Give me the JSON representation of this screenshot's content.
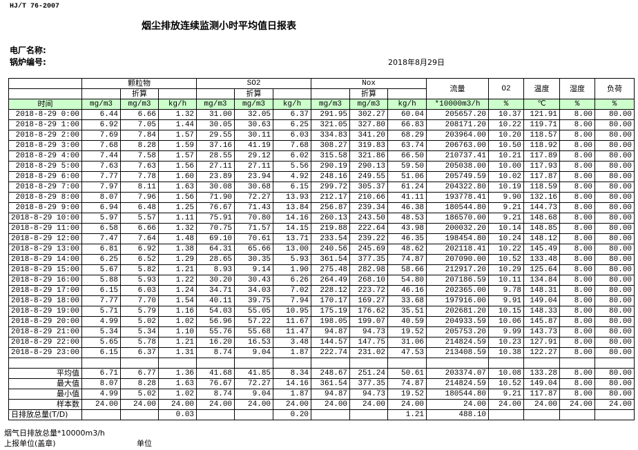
{
  "standard": "HJ/T  76-2007",
  "title": "烟尘排放连续监测小时平均值日报表",
  "plant_label": "电厂名称:",
  "boiler_label": "锅炉编号:",
  "date": "2018年8月29日",
  "header": {
    "groups": [
      "颗粒物",
      "SO2",
      "Nox"
    ],
    "converted": "折算",
    "flow": "流量",
    "o2": "O2",
    "temp": "温度",
    "humidity": "湿度",
    "load": "负荷",
    "time": "时间",
    "units": [
      "mg/m3",
      "mg/m3",
      "kg/h",
      "mg/m3",
      "mg/m3",
      "kg/h",
      "mg/m3",
      "mg/m3",
      "kg/h",
      "*10000m3/h",
      "%",
      "℃",
      "%",
      "%"
    ]
  },
  "rows": [
    [
      "2018-8-29 0:00",
      "6.44",
      "6.66",
      "1.32",
      "31.00",
      "32.05",
      "6.37",
      "291.95",
      "302.27",
      "60.04",
      "205657.20",
      "10.37",
      "121.91",
      "8.00",
      "80.00"
    ],
    [
      "2018-8-29 1:00",
      "6.92",
      "7.05",
      "1.44",
      "30.05",
      "30.63",
      "6.25",
      "321.05",
      "327.80",
      "66.83",
      "208171.20",
      "10.22",
      "119.71",
      "8.00",
      "80.00"
    ],
    [
      "2018-8-29 2:00",
      "7.69",
      "7.84",
      "1.57",
      "29.55",
      "30.11",
      "6.03",
      "334.83",
      "341.20",
      "68.29",
      "203964.00",
      "10.20",
      "118.57",
      "8.00",
      "80.00"
    ],
    [
      "2018-8-29 3:00",
      "7.68",
      "8.28",
      "1.59",
      "37.16",
      "41.19",
      "7.68",
      "308.27",
      "319.83",
      "63.74",
      "206763.00",
      "10.50",
      "118.92",
      "8.00",
      "80.00"
    ],
    [
      "2018-8-29 4:00",
      "7.44",
      "7.58",
      "1.57",
      "28.55",
      "29.12",
      "6.02",
      "315.58",
      "321.86",
      "66.50",
      "210737.41",
      "10.21",
      "117.89",
      "8.00",
      "80.00"
    ],
    [
      "2018-8-29 5:00",
      "7.63",
      "7.63",
      "1.56",
      "27.11",
      "27.11",
      "5.56",
      "290.19",
      "290.13",
      "59.50",
      "205038.00",
      "10.00",
      "117.93",
      "8.00",
      "80.00"
    ],
    [
      "2018-8-29 6:00",
      "7.77",
      "7.78",
      "1.60",
      "23.89",
      "23.94",
      "4.92",
      "248.16",
      "249.55",
      "51.06",
      "205749.59",
      "10.02",
      "117.87",
      "8.00",
      "80.00"
    ],
    [
      "2018-8-29 7:00",
      "7.97",
      "8.11",
      "1.63",
      "30.08",
      "30.68",
      "6.15",
      "299.72",
      "305.37",
      "61.24",
      "204322.80",
      "10.19",
      "118.59",
      "8.00",
      "80.00"
    ],
    [
      "2018-8-29 8:00",
      "8.07",
      "7.96",
      "1.56",
      "71.90",
      "72.27",
      "13.93",
      "212.17",
      "210.66",
      "41.11",
      "193778.41",
      "9.90",
      "132.16",
      "8.00",
      "80.00"
    ],
    [
      "2018-8-29 9:00",
      "6.94",
      "6.48",
      "1.25",
      "76.67",
      "71.43",
      "13.84",
      "256.87",
      "239.34",
      "46.38",
      "180544.80",
      "9.21",
      "144.73",
      "8.00",
      "80.00"
    ],
    [
      "2018-8-29 10:00",
      "5.97",
      "5.57",
      "1.11",
      "75.91",
      "70.80",
      "14.16",
      "260.13",
      "243.50",
      "48.53",
      "186570.00",
      "9.21",
      "148.68",
      "8.00",
      "80.00"
    ],
    [
      "2018-8-29 11:00",
      "6.58",
      "6.66",
      "1.32",
      "70.75",
      "71.57",
      "14.15",
      "219.88",
      "222.64",
      "43.98",
      "200032.20",
      "10.14",
      "148.85",
      "8.00",
      "80.00"
    ],
    [
      "2018-8-29 12:00",
      "7.47",
      "7.64",
      "1.48",
      "69.10",
      "70.61",
      "13.71",
      "233.54",
      "239.22",
      "46.35",
      "198454.80",
      "10.24",
      "148.12",
      "8.00",
      "80.00"
    ],
    [
      "2018-8-29 13:00",
      "6.81",
      "6.92",
      "1.38",
      "64.31",
      "65.66",
      "13.00",
      "240.56",
      "245.69",
      "48.62",
      "202118.41",
      "10.22",
      "145.49",
      "8.00",
      "80.00"
    ],
    [
      "2018-8-29 14:00",
      "6.25",
      "6.52",
      "1.29",
      "28.65",
      "30.35",
      "5.93",
      "361.54",
      "377.35",
      "74.87",
      "207090.00",
      "10.52",
      "133.48",
      "8.00",
      "80.00"
    ],
    [
      "2018-8-29 15:00",
      "5.67",
      "5.82",
      "1.21",
      "8.93",
      "9.14",
      "1.90",
      "275.48",
      "282.98",
      "58.66",
      "212917.20",
      "10.29",
      "125.64",
      "8.00",
      "80.00"
    ],
    [
      "2018-8-29 16:00",
      "5.88",
      "5.93",
      "1.22",
      "30.20",
      "30.43",
      "6.26",
      "264.49",
      "268.10",
      "54.80",
      "207186.59",
      "10.11",
      "134.84",
      "8.00",
      "80.00"
    ],
    [
      "2018-8-29 17:00",
      "6.15",
      "6.03",
      "1.24",
      "34.71",
      "34.03",
      "7.02",
      "228.12",
      "223.72",
      "46.16",
      "202365.00",
      "9.78",
      "148.31",
      "8.00",
      "80.00"
    ],
    [
      "2018-8-29 18:00",
      "7.77",
      "7.70",
      "1.54",
      "40.11",
      "39.75",
      "7.94",
      "170.17",
      "169.27",
      "33.68",
      "197916.00",
      "9.91",
      "149.04",
      "8.00",
      "80.00"
    ],
    [
      "2018-8-29 19:00",
      "5.71",
      "5.79",
      "1.16",
      "54.03",
      "55.05",
      "10.95",
      "175.19",
      "176.62",
      "35.51",
      "202681.20",
      "10.15",
      "148.33",
      "8.00",
      "80.00"
    ],
    [
      "2018-8-29 20:00",
      "4.99",
      "5.02",
      "1.02",
      "56.96",
      "57.22",
      "11.67",
      "198.05",
      "199.07",
      "40.59",
      "204933.59",
      "10.06",
      "145.87",
      "8.00",
      "80.00"
    ],
    [
      "2018-8-29 21:00",
      "5.34",
      "5.34",
      "1.10",
      "55.76",
      "55.68",
      "11.47",
      "94.87",
      "94.73",
      "19.52",
      "205753.20",
      "9.99",
      "143.73",
      "8.00",
      "80.00"
    ],
    [
      "2018-8-29 22:00",
      "5.65",
      "5.78",
      "1.21",
      "16.20",
      "16.53",
      "3.48",
      "144.57",
      "147.75",
      "31.06",
      "214824.59",
      "10.23",
      "127.91",
      "8.00",
      "80.00"
    ],
    [
      "2018-8-29 23:00",
      "6.15",
      "6.37",
      "1.31",
      "8.74",
      "9.04",
      "1.87",
      "222.74",
      "231.02",
      "47.53",
      "213408.59",
      "10.38",
      "122.27",
      "8.00",
      "80.00"
    ]
  ],
  "summary": [
    [
      "平均值",
      "6.71",
      "6.77",
      "1.36",
      "41.68",
      "41.85",
      "8.34",
      "248.67",
      "251.24",
      "50.61",
      "203374.07",
      "10.08",
      "133.28",
      "8.00",
      "80.00"
    ],
    [
      "最大值",
      "8.07",
      "8.28",
      "1.63",
      "76.67",
      "72.27",
      "14.16",
      "361.54",
      "377.35",
      "74.87",
      "214824.59",
      "10.52",
      "149.04",
      "8.00",
      "80.00"
    ],
    [
      "最小值",
      "4.99",
      "5.02",
      "1.02",
      "8.74",
      "9.04",
      "1.87",
      "94.87",
      "94.73",
      "19.52",
      "180544.80",
      "9.21",
      "117.87",
      "8.00",
      "80.00"
    ],
    [
      "样本数",
      "24.00",
      "24.00",
      "24.00",
      "24.00",
      "24.00",
      "24.00",
      "24.00",
      "24.00",
      "24.00",
      "24.00",
      "24.00",
      "24.00",
      "24.00",
      "24.00"
    ],
    [
      "日排放总量(T/D)",
      "",
      "",
      "0.03",
      "",
      "",
      "0.20",
      "",
      "",
      "1.21",
      "488.10",
      "",
      "",
      "",
      ""
    ]
  ],
  "footer": {
    "flue_gas_total": "烟气日排放总量*10000m3/h",
    "reporting_unit": "上报单位(盖章)",
    "unit": "单位"
  }
}
